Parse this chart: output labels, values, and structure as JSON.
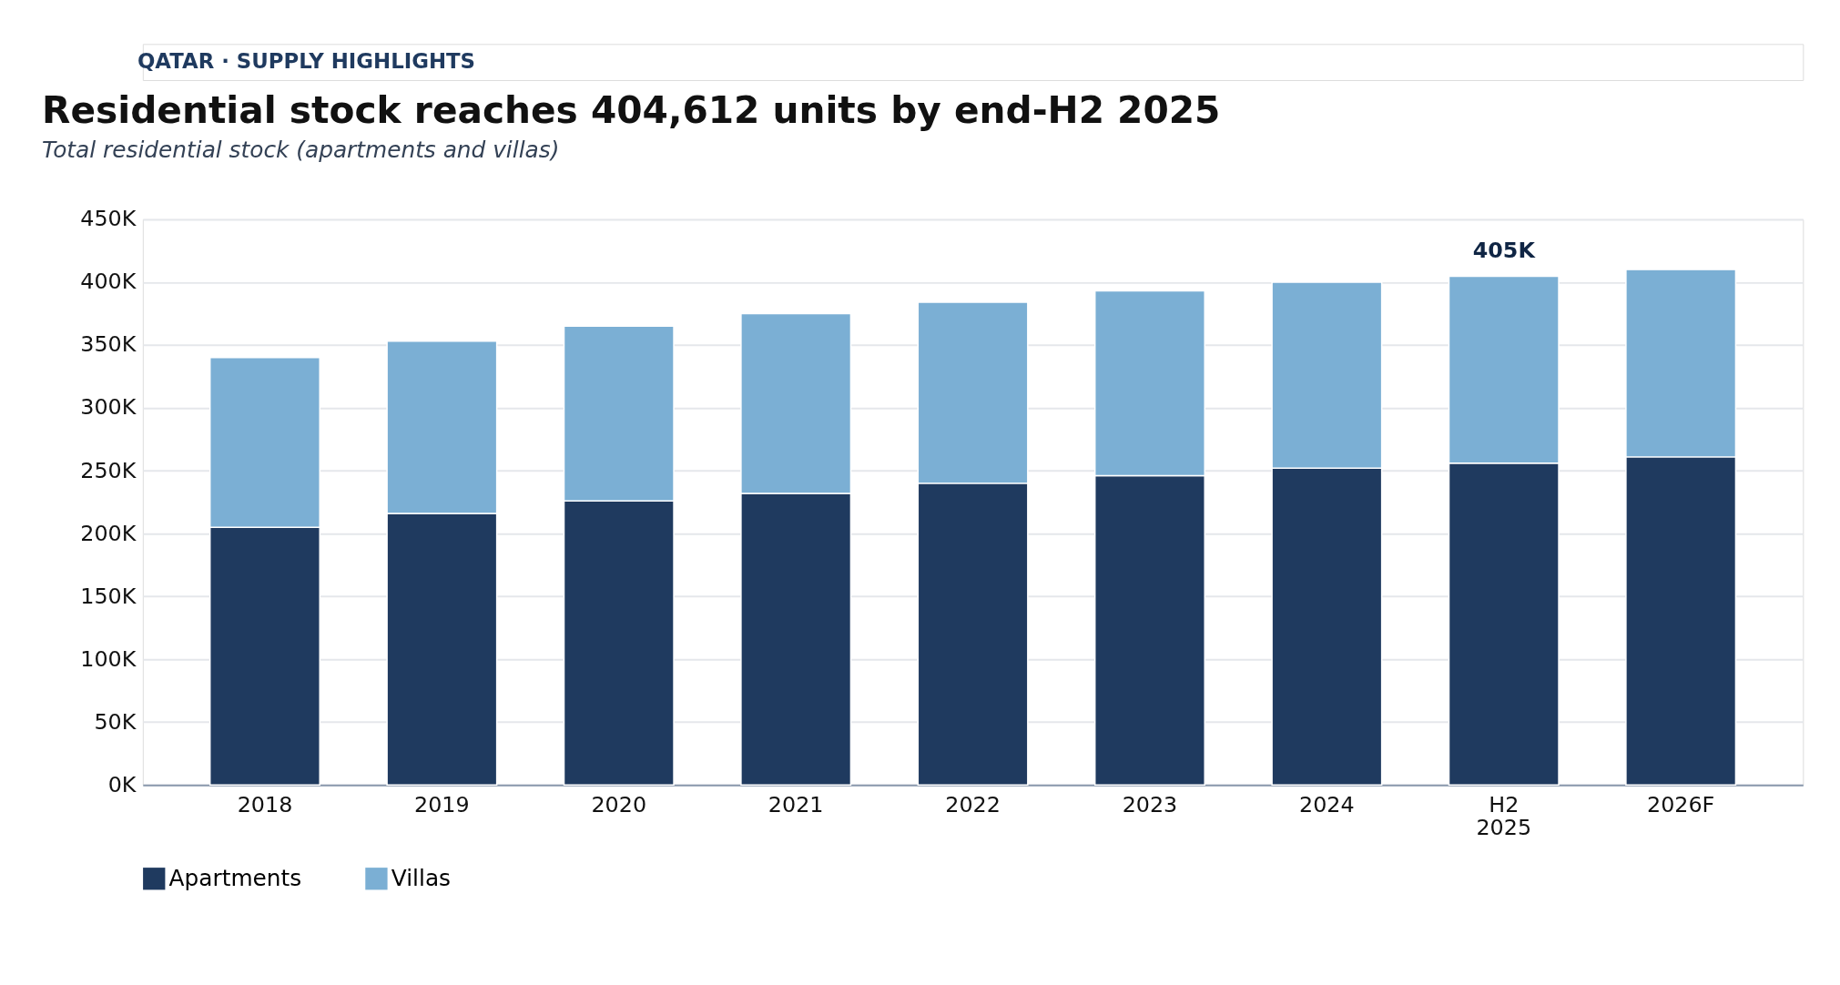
{
  "chart_data": {
    "type": "bar",
    "title": "Residential stock reaches 404,612 units by end-H2 2025",
    "subtitle": "Total residential stock (apartments and villas)",
    "categories": [
      "2018",
      "2019",
      "2020",
      "2021",
      "2022",
      "2023",
      "2024",
      "H2 2025",
      "2026F"
    ],
    "series": [
      {
        "name": "Apartments",
        "color": "#1f3a5f",
        "values": [
          205,
          216,
          226,
          232,
          240,
          246,
          252,
          256,
          261
        ]
      },
      {
        "name": "Villas",
        "color": "#7bafd4",
        "values": [
          135,
          137,
          139,
          143,
          144,
          147,
          148,
          148.6,
          149
        ]
      }
    ],
    "stacked": true,
    "ylim": [
      0,
      450
    ],
    "yticks": [
      {
        "value": 0,
        "label": "0K"
      },
      {
        "value": 50,
        "label": "50K"
      },
      {
        "value": 100,
        "label": "100K"
      },
      {
        "value": 150,
        "label": "150K"
      },
      {
        "value": 200,
        "label": "200K"
      },
      {
        "value": 250,
        "label": "250K"
      },
      {
        "value": 300,
        "label": "300K"
      },
      {
        "value": 350,
        "label": "350K"
      },
      {
        "value": 400,
        "label": "400K"
      },
      {
        "value": 450,
        "label": "450K"
      }
    ],
    "grid": "y",
    "legend": "bottom",
    "annotations": [
      "QATAR · SUPPLY HIGHLIGHTS",
      {
        "text": "405K",
        "x": "H2 2025",
        "y": 404.6
      }
    ]
  }
}
